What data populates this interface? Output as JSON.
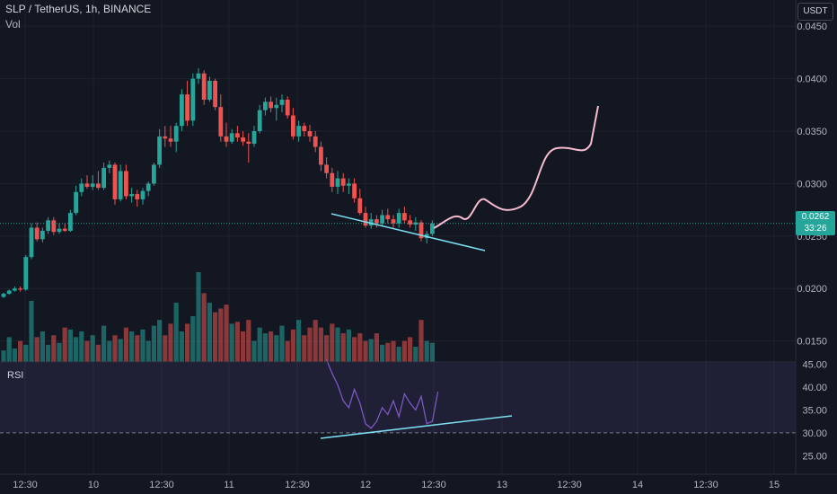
{
  "header": {
    "symbol_line": "SLP / TetherUS, 1h, BINANCE",
    "volume_label": "Vol",
    "rsi_label": "RSI",
    "currency_button": "USDT"
  },
  "price_badge": {
    "price": "0.0262",
    "countdown": "33:26"
  },
  "colors": {
    "up": "#26a69a",
    "down": "#ef5350",
    "background": "#131722",
    "rsi_line": "#7e57c2",
    "drawing_trend": "#7ddff2",
    "drawing_projection": "#f8bbd0"
  },
  "chart_data": [
    {
      "type": "candlestick",
      "title": "SLP / TetherUS, 1h, BINANCE",
      "x_tick_labels": [
        "12:30",
        "10",
        "12:30",
        "11",
        "12:30",
        "12",
        "12:30",
        "13",
        "12:30",
        "14",
        "12:30",
        "15"
      ],
      "y_tick_labels": [
        "0.0450",
        "0.0400",
        "0.0350",
        "0.0300",
        "0.0250",
        "0.0200",
        "0.0150"
      ],
      "ylim": [
        0.013,
        0.0475
      ],
      "grid": true,
      "last_price": 0.0262,
      "ohlc": [
        [
          0.0192,
          0.0196,
          0.0191,
          0.0195
        ],
        [
          0.0195,
          0.0199,
          0.0194,
          0.0198
        ],
        [
          0.0198,
          0.0202,
          0.0197,
          0.02
        ],
        [
          0.02,
          0.0202,
          0.0197,
          0.0199
        ],
        [
          0.0199,
          0.0232,
          0.0198,
          0.023
        ],
        [
          0.023,
          0.0262,
          0.0228,
          0.0258
        ],
        [
          0.0258,
          0.0263,
          0.0245,
          0.0247
        ],
        [
          0.0247,
          0.0258,
          0.0244,
          0.0255
        ],
        [
          0.0255,
          0.0268,
          0.0252,
          0.0265
        ],
        [
          0.0265,
          0.0268,
          0.0251,
          0.0254
        ],
        [
          0.0254,
          0.0262,
          0.0252,
          0.0257
        ],
        [
          0.0257,
          0.0262,
          0.0254,
          0.0255
        ],
        [
          0.0255,
          0.0275,
          0.0254,
          0.0272
        ],
        [
          0.0272,
          0.0298,
          0.027,
          0.0292
        ],
        [
          0.0292,
          0.0305,
          0.0288,
          0.03
        ],
        [
          0.03,
          0.0308,
          0.0295,
          0.0297
        ],
        [
          0.0297,
          0.0308,
          0.0294,
          0.03
        ],
        [
          0.03,
          0.0312,
          0.0294,
          0.0296
        ],
        [
          0.0296,
          0.032,
          0.0294,
          0.0315
        ],
        [
          0.0315,
          0.0322,
          0.031,
          0.0318
        ],
        [
          0.0318,
          0.032,
          0.028,
          0.0285
        ],
        [
          0.0285,
          0.0318,
          0.0283,
          0.0312
        ],
        [
          0.0312,
          0.0318,
          0.0285,
          0.0288
        ],
        [
          0.0288,
          0.0296,
          0.0282,
          0.029
        ],
        [
          0.029,
          0.0294,
          0.0278,
          0.0285
        ],
        [
          0.0285,
          0.0296,
          0.028,
          0.0293
        ],
        [
          0.0293,
          0.0302,
          0.0288,
          0.03
        ],
        [
          0.03,
          0.032,
          0.0298,
          0.0318
        ],
        [
          0.0318,
          0.0352,
          0.0315,
          0.0345
        ],
        [
          0.0345,
          0.0355,
          0.0335,
          0.0343
        ],
        [
          0.0343,
          0.0355,
          0.0335,
          0.034
        ],
        [
          0.034,
          0.0358,
          0.033,
          0.0355
        ],
        [
          0.0355,
          0.039,
          0.035,
          0.0385
        ],
        [
          0.0385,
          0.0398,
          0.0355,
          0.036
        ],
        [
          0.036,
          0.0405,
          0.0355,
          0.04
        ],
        [
          0.04,
          0.041,
          0.0395,
          0.0405
        ],
        [
          0.0405,
          0.0408,
          0.0375,
          0.038
        ],
        [
          0.038,
          0.0402,
          0.0378,
          0.0398
        ],
        [
          0.0398,
          0.04,
          0.037,
          0.0373
        ],
        [
          0.0373,
          0.0385,
          0.034,
          0.0345
        ],
        [
          0.0345,
          0.0358,
          0.0335,
          0.034
        ],
        [
          0.034,
          0.0352,
          0.0338,
          0.0348
        ],
        [
          0.0348,
          0.0355,
          0.034,
          0.0344
        ],
        [
          0.0344,
          0.035,
          0.0336,
          0.034
        ],
        [
          0.034,
          0.0348,
          0.032,
          0.0338
        ],
        [
          0.0338,
          0.0355,
          0.0335,
          0.035
        ],
        [
          0.035,
          0.0375,
          0.0348,
          0.037
        ],
        [
          0.037,
          0.0382,
          0.0365,
          0.0378
        ],
        [
          0.0378,
          0.0383,
          0.0368,
          0.0372
        ],
        [
          0.0372,
          0.0382,
          0.036,
          0.0375
        ],
        [
          0.0375,
          0.0385,
          0.0368,
          0.038
        ],
        [
          0.038,
          0.0383,
          0.0362,
          0.0365
        ],
        [
          0.0365,
          0.0372,
          0.0342,
          0.0345
        ],
        [
          0.0345,
          0.036,
          0.034,
          0.0355
        ],
        [
          0.0355,
          0.0358,
          0.0345,
          0.035
        ],
        [
          0.035,
          0.0356,
          0.034,
          0.0345
        ],
        [
          0.0345,
          0.035,
          0.033,
          0.0335
        ],
        [
          0.0335,
          0.034,
          0.0312,
          0.0318
        ],
        [
          0.0318,
          0.0325,
          0.0305,
          0.031
        ],
        [
          0.031,
          0.0315,
          0.0292,
          0.0297
        ],
        [
          0.0297,
          0.0312,
          0.029,
          0.0305
        ],
        [
          0.0305,
          0.031,
          0.0292,
          0.0298
        ],
        [
          0.0298,
          0.0305,
          0.029,
          0.03
        ],
        [
          0.03,
          0.0305,
          0.0282,
          0.0286
        ],
        [
          0.0286,
          0.0295,
          0.027,
          0.0272
        ],
        [
          0.0272,
          0.0278,
          0.0258,
          0.026
        ],
        [
          0.026,
          0.0272,
          0.0257,
          0.0266
        ],
        [
          0.0266,
          0.027,
          0.0258,
          0.0262
        ],
        [
          0.0262,
          0.0275,
          0.026,
          0.027
        ],
        [
          0.027,
          0.0276,
          0.0262,
          0.0266
        ],
        [
          0.0266,
          0.027,
          0.0258,
          0.0262
        ],
        [
          0.0262,
          0.0276,
          0.0258,
          0.0272
        ],
        [
          0.0272,
          0.0278,
          0.0262,
          0.0265
        ],
        [
          0.0265,
          0.027,
          0.0258,
          0.0261
        ],
        [
          0.0261,
          0.0268,
          0.0255,
          0.0263
        ],
        [
          0.0263,
          0.0265,
          0.0245,
          0.0248
        ],
        [
          0.0248,
          0.0255,
          0.0243,
          0.0252
        ],
        [
          0.0252,
          0.0265,
          0.025,
          0.0262
        ]
      ],
      "volume": [
        6,
        13,
        7,
        11,
        9,
        32,
        13,
        16,
        9,
        14,
        10,
        18,
        17,
        13,
        16,
        11,
        14,
        9,
        19,
        11,
        14,
        12,
        18,
        16,
        14,
        17,
        11,
        19,
        22,
        14,
        20,
        31,
        16,
        20,
        24,
        47,
        36,
        31,
        26,
        28,
        30,
        20,
        21,
        16,
        22,
        11,
        18,
        15,
        16,
        14,
        19,
        11,
        17,
        22,
        14,
        18,
        22,
        18,
        14,
        20,
        18,
        15,
        17,
        13,
        15,
        11,
        12,
        15,
        9,
        10,
        11,
        8,
        11,
        13,
        8,
        22,
        11,
        10
      ],
      "volume_colors": [
        "up",
        "up",
        "up",
        "down",
        "up",
        "up",
        "down",
        "up",
        "up",
        "down",
        "up",
        "down",
        "up",
        "up",
        "up",
        "down",
        "up",
        "down",
        "up",
        "up",
        "down",
        "up",
        "down",
        "up",
        "down",
        "up",
        "up",
        "up",
        "up",
        "down",
        "down",
        "up",
        "up",
        "down",
        "up",
        "up",
        "down",
        "up",
        "down",
        "down",
        "down",
        "up",
        "down",
        "down",
        "down",
        "up",
        "up",
        "up",
        "down",
        "up",
        "up",
        "down",
        "down",
        "up",
        "down",
        "down",
        "down",
        "down",
        "down",
        "down",
        "up",
        "down",
        "up",
        "down",
        "down",
        "down",
        "up",
        "down",
        "up",
        "down",
        "down",
        "up",
        "down",
        "down",
        "up",
        "down",
        "up",
        "up"
      ]
    },
    {
      "type": "line",
      "title": "RSI",
      "y_tick_labels": [
        "45.00",
        "40.00",
        "35.00",
        "30.00",
        "25.00"
      ],
      "ylim": [
        22.5,
        45.5
      ],
      "band": [
        30,
        70
      ],
      "series": [
        {
          "x_index": [
            58,
            59,
            60,
            61,
            62,
            63,
            64,
            65,
            66,
            67,
            68,
            69,
            70,
            71,
            72,
            73,
            74,
            75,
            76,
            77,
            78
          ],
          "values": [
            46,
            43,
            40.5,
            37,
            35.5,
            39.5,
            36.5,
            32,
            31,
            32.5,
            35.5,
            34,
            37,
            33.5,
            38.5,
            36.5,
            35,
            38,
            32,
            32.5,
            39
          ]
        }
      ]
    }
  ]
}
